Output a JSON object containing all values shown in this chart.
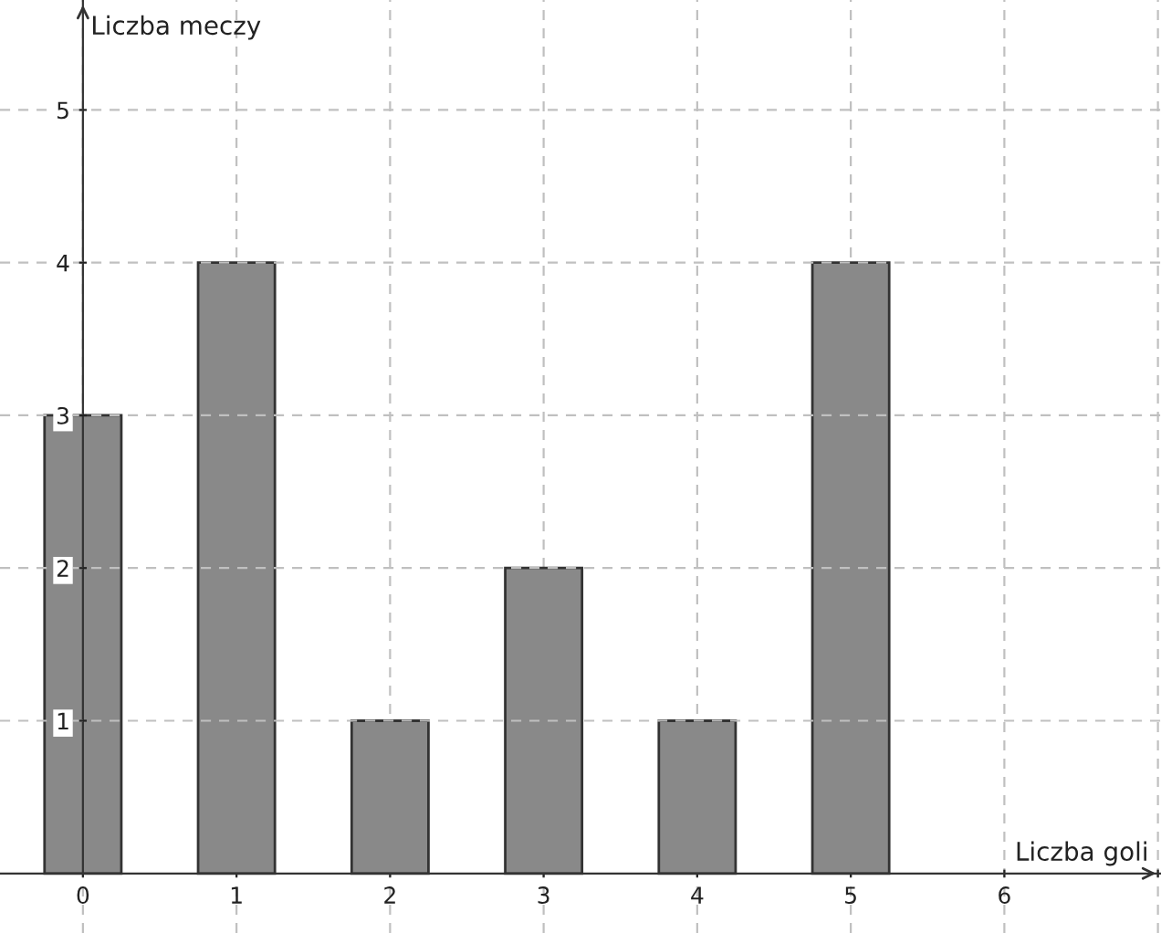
{
  "chart_data": {
    "type": "bar",
    "xlabel": "Liczba goli",
    "ylabel": "Liczba meczy",
    "x": [
      0,
      1,
      2,
      3,
      4,
      5
    ],
    "values": [
      3,
      4,
      1,
      2,
      1,
      4
    ],
    "color": "#898989",
    "xlim": [
      -0.54,
      7.02
    ],
    "ylim": [
      -0.39,
      5.72
    ],
    "xticks": [
      0,
      1,
      2,
      3,
      4,
      5,
      6,
      {
        "value": 7,
        "label": null
      }
    ],
    "yticks": [
      1,
      2,
      3,
      4,
      5
    ],
    "grid": true
  }
}
